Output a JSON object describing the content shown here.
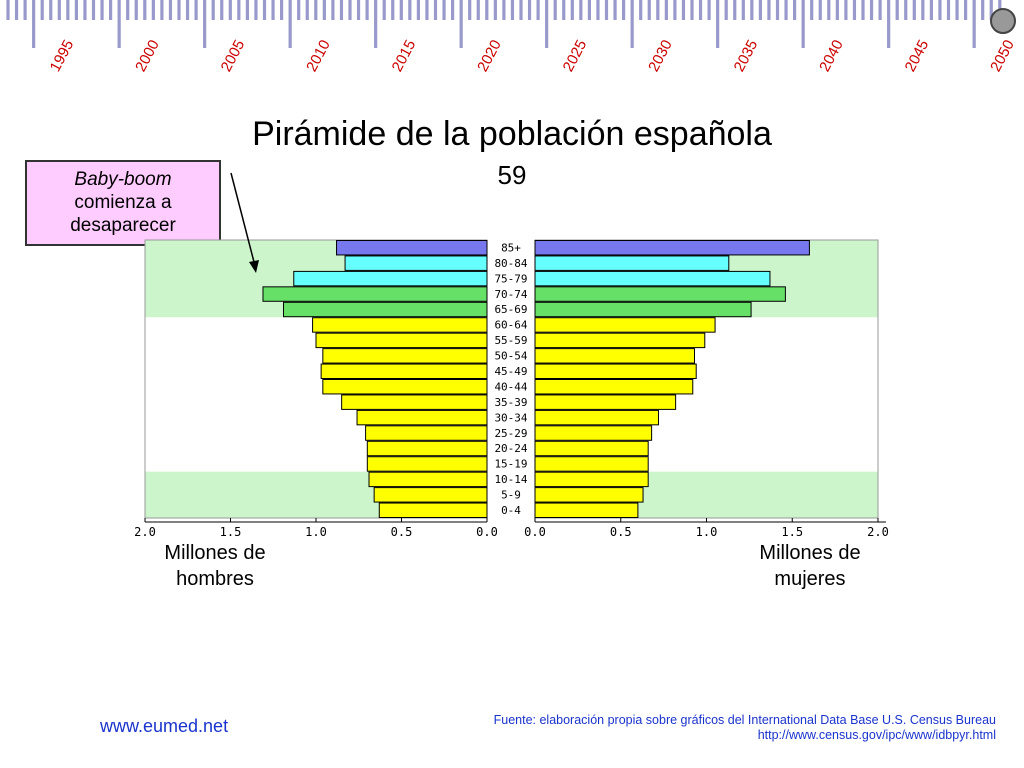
{
  "timeline": {
    "years": [
      "1995",
      "2000",
      "2005",
      "2010",
      "2015",
      "2020",
      "2025",
      "2030",
      "2035",
      "2040",
      "2045",
      "2050"
    ],
    "label_color": "#cc0000",
    "tick_color": "#9999cc",
    "marker_icon": "circle-marker-icon",
    "marker_color": "#999999"
  },
  "title": "Pirámide de la población española",
  "slide_number": "59",
  "callout": {
    "line1": "Baby-boom",
    "line2": "comienza a",
    "line3": "desaparecer",
    "background": "#ffccff"
  },
  "captions": {
    "men": [
      "Millones de",
      "hombres"
    ],
    "women": [
      "Millones de",
      "mujeres"
    ]
  },
  "footer": {
    "site": "www.eumed.net",
    "source_line1": "Fuente: elaboración propia sobre gráficos del International Data Base U.S. Census Bureau",
    "source_line2": "http://www.census.gov/ipc/www/idbpyr.html"
  },
  "chart_data": {
    "type": "bar",
    "orientation": "horizontal-pyramid",
    "categories": [
      "0-4",
      "5-9",
      "10-14",
      "15-19",
      "20-24",
      "25-29",
      "30-34",
      "35-39",
      "40-44",
      "45-49",
      "50-54",
      "55-59",
      "60-64",
      "65-69",
      "70-74",
      "75-79",
      "80-84",
      "85+"
    ],
    "series": [
      {
        "side": "left",
        "values": [
          0.63,
          0.66,
          0.69,
          0.7,
          0.7,
          0.71,
          0.76,
          0.85,
          0.96,
          0.97,
          0.96,
          1.0,
          1.02,
          1.19,
          1.31,
          1.13,
          0.83,
          0.88
        ]
      },
      {
        "side": "right",
        "values": [
          0.6,
          0.63,
          0.66,
          0.66,
          0.66,
          0.68,
          0.72,
          0.82,
          0.92,
          0.94,
          0.93,
          0.99,
          1.05,
          1.26,
          1.46,
          1.37,
          1.13,
          1.6
        ]
      }
    ],
    "band_colors": {
      "0-14": "#ffff00",
      "15-64": "#ffff00",
      "65-74": "#66e066",
      "75-84": "#66ffff",
      "85+": "#7777ee"
    },
    "background_bands": [
      {
        "from": "0-4",
        "to": "10-14",
        "color": "#ccf5cc"
      },
      {
        "from": "65-69",
        "to": "85+",
        "color": "#ccf5cc"
      }
    ],
    "xlim": [
      0,
      2.0
    ],
    "ticks": [
      "2.0",
      "1.5",
      "1.0",
      "0.5",
      "0.0"
    ],
    "ticks_right": [
      "0.0",
      "0.5",
      "1.0",
      "1.5",
      "2.0"
    ]
  }
}
